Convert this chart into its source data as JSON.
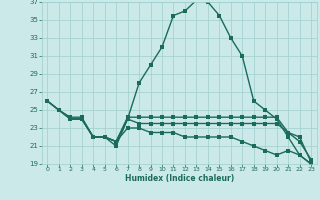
{
  "xlabel": "Humidex (Indice chaleur)",
  "xlim": [
    -0.5,
    23.5
  ],
  "ylim": [
    19,
    37
  ],
  "yticks": [
    19,
    21,
    23,
    25,
    27,
    29,
    31,
    33,
    35,
    37
  ],
  "xticks": [
    0,
    1,
    2,
    3,
    4,
    5,
    6,
    7,
    8,
    9,
    10,
    11,
    12,
    13,
    14,
    15,
    16,
    17,
    18,
    19,
    20,
    21,
    22,
    23
  ],
  "bg_color": "#cce9e9",
  "grid_color": "#9fcfcf",
  "line_color": "#1a6b5a",
  "line1_x": [
    0,
    1,
    2,
    3,
    4,
    5,
    6,
    7,
    8,
    9,
    10,
    11,
    12,
    13,
    14,
    15,
    16,
    17,
    18,
    19,
    20,
    21,
    22,
    23
  ],
  "line1_y": [
    26,
    25,
    24,
    24,
    22,
    22,
    21,
    24,
    28,
    30,
    32,
    35.5,
    36,
    37.2,
    37,
    35.5,
    33,
    31,
    26,
    25,
    24,
    22,
    20,
    19
  ],
  "line2_x": [
    0,
    1,
    2,
    3,
    4,
    5,
    6,
    7,
    8,
    9,
    10,
    11,
    12,
    13,
    14,
    15,
    16,
    17,
    18,
    19,
    20,
    21,
    22,
    23
  ],
  "line2_y": [
    26,
    25,
    24.2,
    24.2,
    22,
    22,
    21.5,
    24.2,
    24.2,
    24.2,
    24.2,
    24.2,
    24.2,
    24.2,
    24.2,
    24.2,
    24.2,
    24.2,
    24.2,
    24.2,
    24.2,
    22.5,
    21.5,
    19.5
  ],
  "line3_x": [
    0,
    1,
    2,
    3,
    4,
    5,
    6,
    7,
    8,
    9,
    10,
    11,
    12,
    13,
    14,
    15,
    16,
    17,
    18,
    19,
    20,
    21,
    22,
    23
  ],
  "line3_y": [
    26,
    25,
    24.0,
    24.0,
    22,
    22,
    21.5,
    24.0,
    23.5,
    23.5,
    23.5,
    23.5,
    23.5,
    23.5,
    23.5,
    23.5,
    23.5,
    23.5,
    23.5,
    23.5,
    23.5,
    22.5,
    22.0,
    19.2
  ],
  "line4_x": [
    2,
    3,
    4,
    5,
    6,
    7,
    8,
    9,
    10,
    11,
    12,
    13,
    14,
    15,
    16,
    17,
    18,
    19,
    20,
    21,
    22,
    23
  ],
  "line4_y": [
    24,
    24,
    22,
    22,
    21.5,
    23,
    23,
    22.5,
    22.5,
    22.5,
    22,
    22,
    22,
    22,
    22,
    21.5,
    21,
    20.5,
    20,
    20.5,
    20,
    19
  ],
  "marker_size": 2.5,
  "line_width": 1.0
}
